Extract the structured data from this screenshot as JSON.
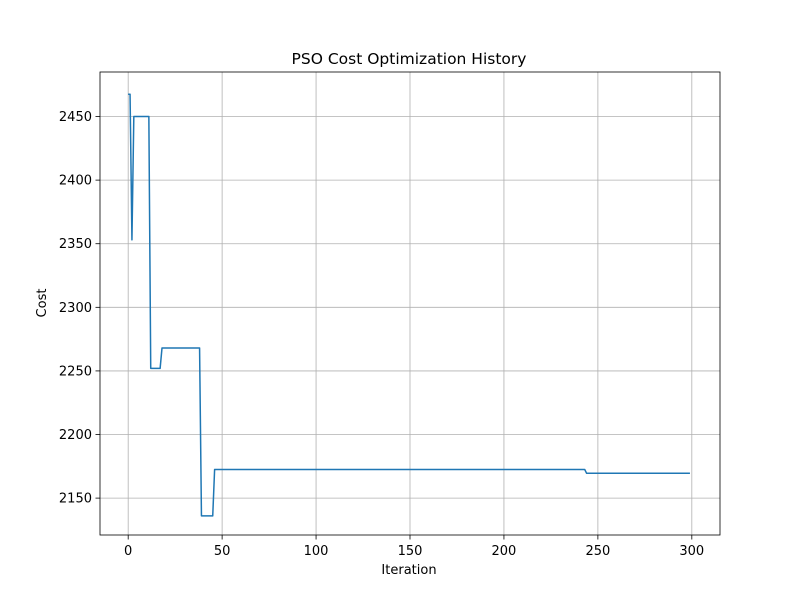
{
  "chart_data": {
    "type": "line",
    "title": "PSO Cost Optimization History",
    "xlabel": "Iteration",
    "ylabel": "Cost",
    "xlim": [
      -15,
      315
    ],
    "ylim": [
      2121,
      2485
    ],
    "xticks": [
      0,
      50,
      100,
      150,
      200,
      250,
      300
    ],
    "yticks": [
      2150,
      2200,
      2250,
      2300,
      2350,
      2400,
      2450
    ],
    "grid": true,
    "legend": "none",
    "line_color": "#1f77b4",
    "series": [
      {
        "x": [
          0,
          1,
          2,
          3,
          4,
          5,
          11,
          12,
          17,
          18,
          38,
          39,
          45,
          46,
          243,
          244,
          299
        ],
        "values": [
          2467.5,
          2467.5,
          2353.0,
          2450.0,
          2450.0,
          2450.0,
          2450.0,
          2252.0,
          2252.0,
          2268.0,
          2268.0,
          2136.0,
          2136.0,
          2172.5,
          2172.5,
          2169.5,
          2169.5
        ]
      }
    ]
  }
}
